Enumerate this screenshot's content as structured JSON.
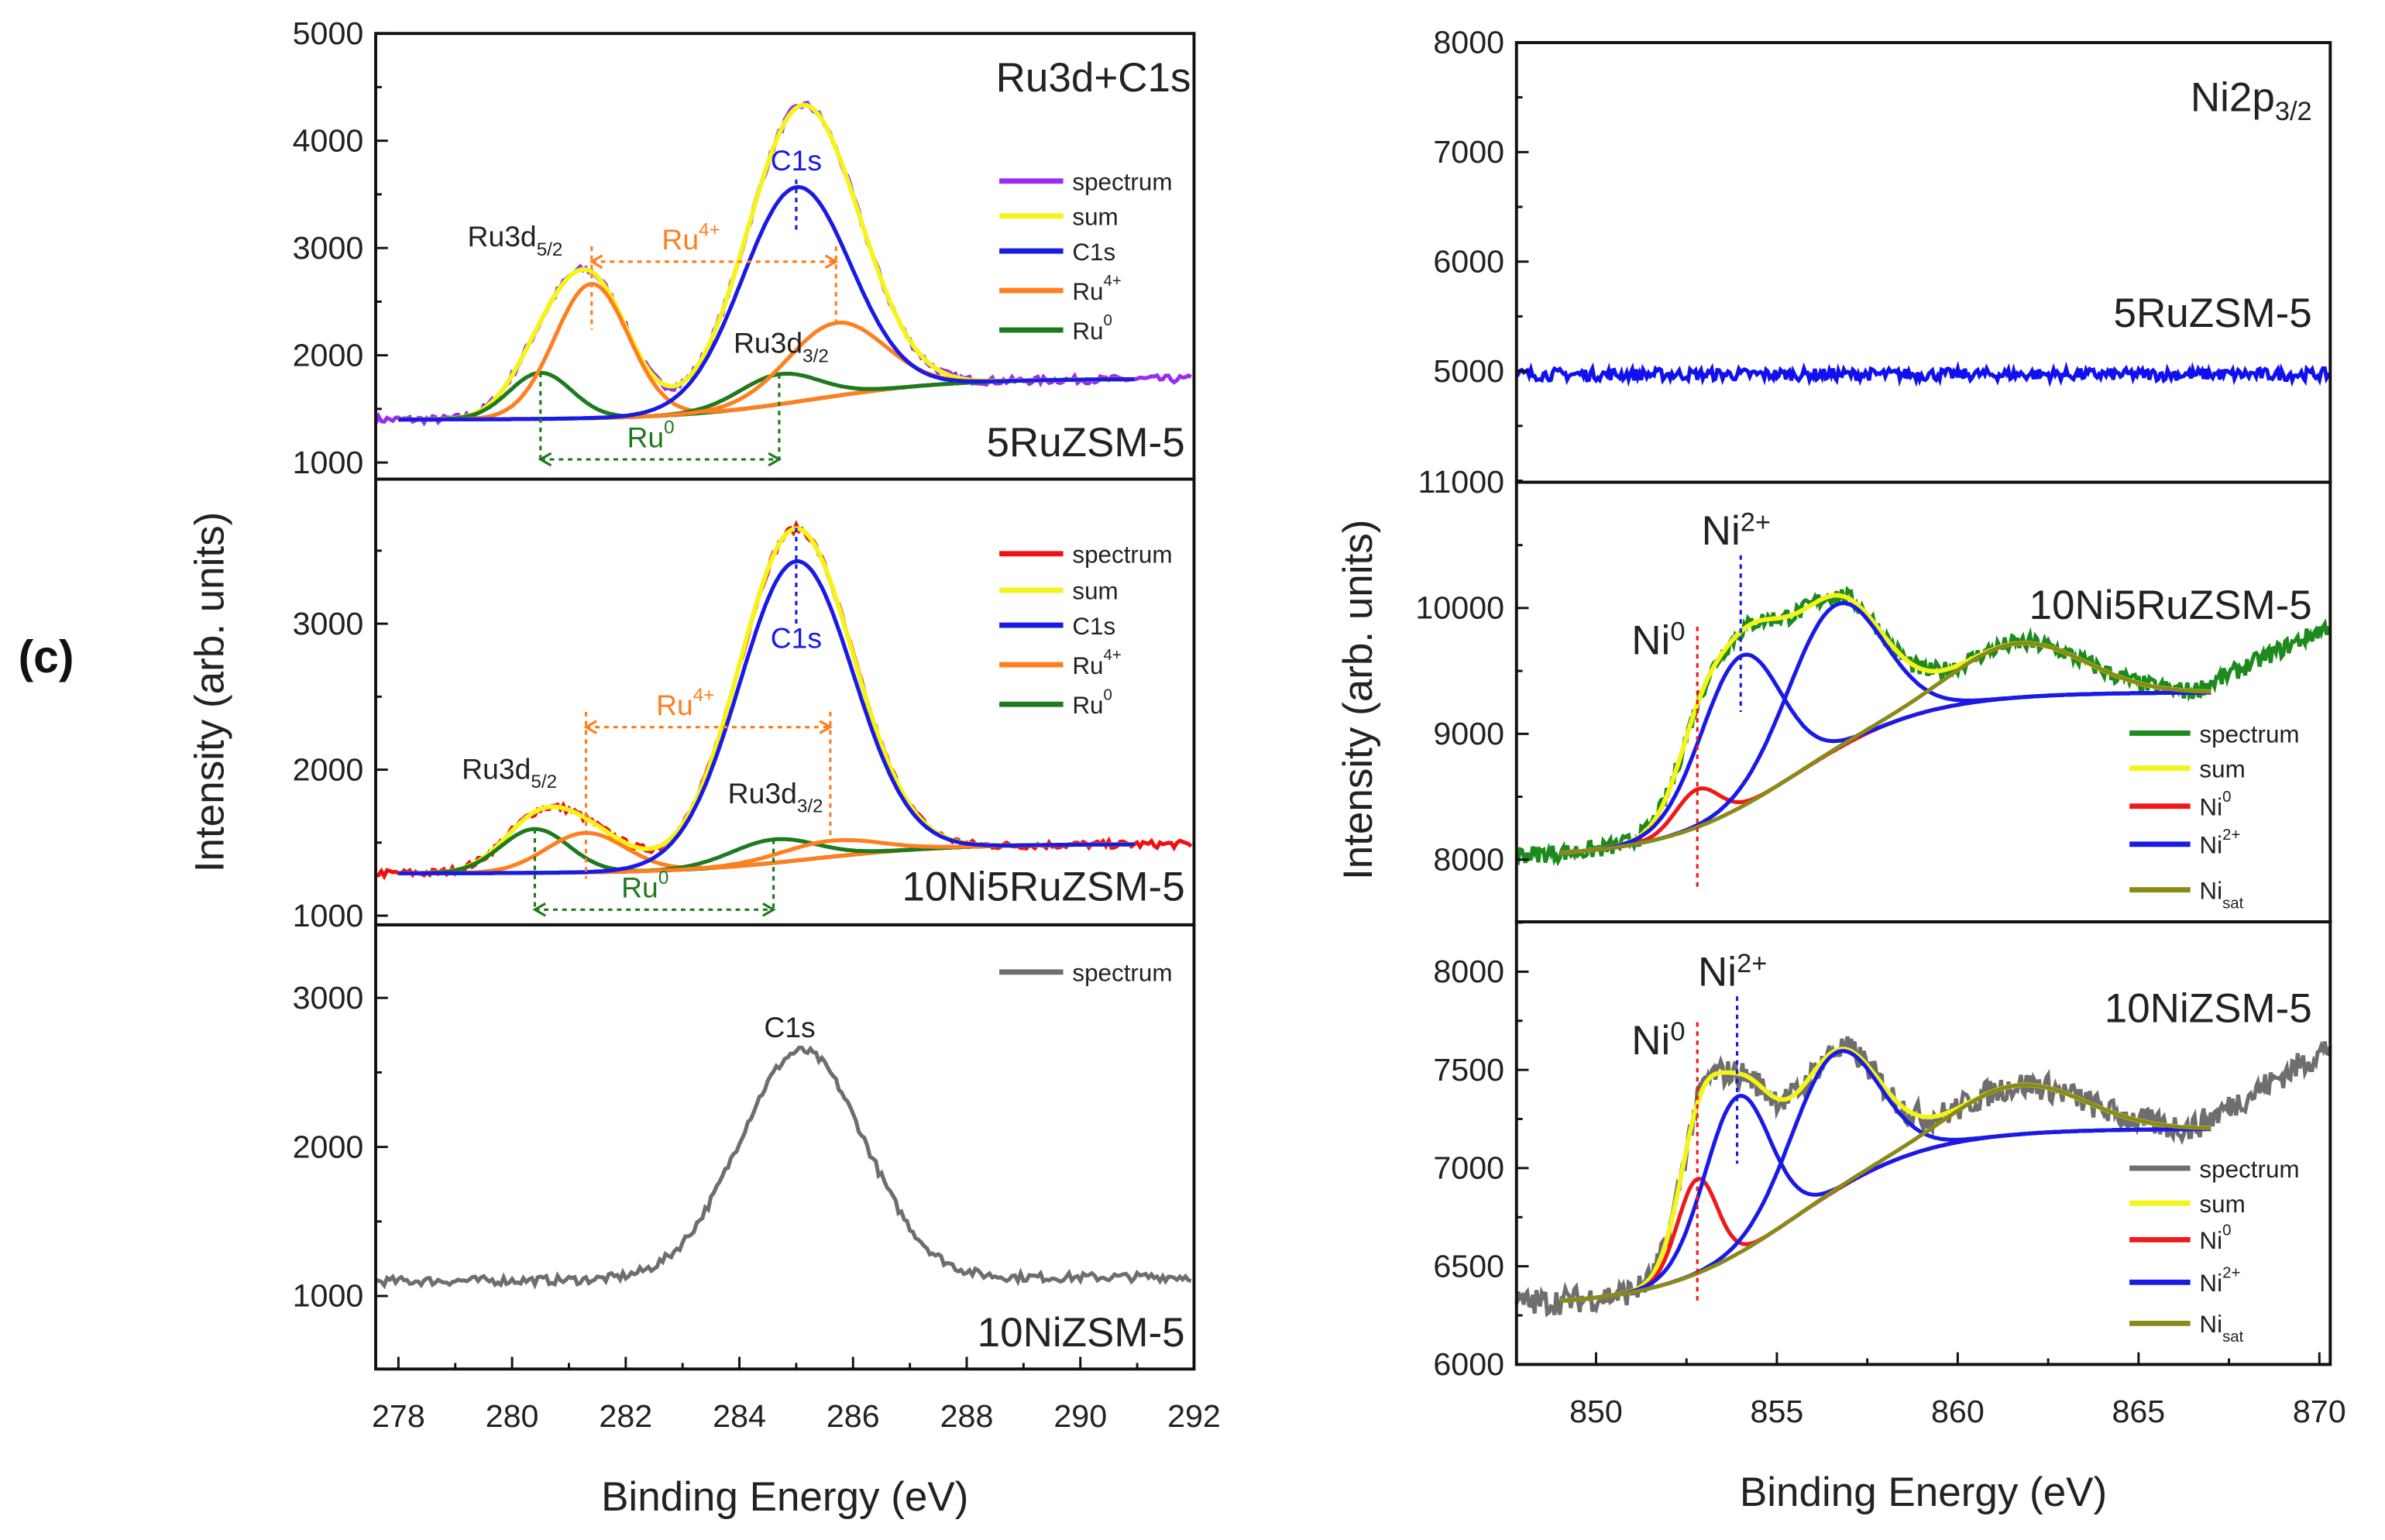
{
  "figure_label": "(c)",
  "colors": {
    "spectrum_purple": "#9a2cf0",
    "spectrum_red": "#f01010",
    "spectrum_grey": "#6e6e6e",
    "spectrum_green": "#1e8a1e",
    "spectrum_blue": "#1010f0",
    "sum": "#f4f418",
    "c1s": "#1a1ae6",
    "ru4": "#ff7f1e",
    "ru0": "#1e7a1e",
    "ni0": "#f01818",
    "ni2": "#1a1ae6",
    "nisat": "#8a8a1a"
  },
  "chart_data": [
    {
      "type": "line",
      "column": "left",
      "title": "Ru3d+C1s",
      "sample": "5RuZSM-5",
      "ylabel": "Intensity (arb. units)",
      "xlabel": "",
      "xlim": [
        277.6,
        292
      ],
      "ylim": [
        845,
        5000
      ],
      "yticks": [
        1000,
        2000,
        3000,
        4000,
        5000
      ],
      "background": {
        "low": 1400,
        "high": 1780,
        "center": 285.3,
        "width": 1.2
      },
      "components": [
        {
          "name": "Ru0",
          "center": 280.5,
          "amplitude": 430,
          "sigma": 0.55
        },
        {
          "name": "Ru4+",
          "center": 281.4,
          "amplitude": 1250,
          "sigma": 0.65
        },
        {
          "name": "Ru0",
          "center": 284.7,
          "amplitude": 280,
          "sigma": 0.7
        },
        {
          "name": "Ru4+",
          "center": 285.7,
          "amplitude": 680,
          "sigma": 0.85
        },
        {
          "name": "C1s",
          "center": 285.0,
          "amplitude": 2000,
          "sigma": 0.95
        }
      ],
      "legend": [
        {
          "text": "spectrum",
          "sup": "",
          "sub": "",
          "color": "spectrum_purple"
        },
        {
          "text": "sum",
          "sup": "",
          "sub": "",
          "color": "sum"
        },
        {
          "text": "C1s",
          "sup": "",
          "sub": "",
          "color": "c1s"
        },
        {
          "text": "Ru",
          "sup": "4+",
          "sub": "",
          "color": "ru4"
        },
        {
          "text": "Ru",
          "sup": "0",
          "sub": "",
          "color": "ru0"
        }
      ],
      "annotations": [
        {
          "text": "Ru3d",
          "sub": "5/2",
          "sup": ""
        },
        {
          "text": "Ru",
          "sup": "4+",
          "sub": ""
        },
        {
          "text": "C1s",
          "sup": "",
          "sub": ""
        },
        {
          "text": "Ru3d",
          "sub": "3/2",
          "sup": ""
        },
        {
          "text": "Ru",
          "sup": "0",
          "sub": ""
        }
      ]
    },
    {
      "type": "line",
      "column": "left",
      "sample": "10Ni5RuZSM-5",
      "xlim": [
        277.6,
        292
      ],
      "ylim": [
        937,
        3990
      ],
      "yticks": [
        1000,
        2000,
        3000
      ],
      "background": {
        "low": 1290,
        "high": 1490,
        "center": 285.3,
        "width": 1.2
      },
      "components": [
        {
          "name": "Ru0",
          "center": 280.4,
          "amplitude": 300,
          "sigma": 0.6
        },
        {
          "name": "Ru4+",
          "center": 281.3,
          "amplitude": 270,
          "sigma": 0.7
        },
        {
          "name": "Ru0",
          "center": 284.6,
          "amplitude": 160,
          "sigma": 0.75
        },
        {
          "name": "Ru4+",
          "center": 285.6,
          "amplitude": 110,
          "sigma": 0.85
        },
        {
          "name": "C1s",
          "center": 285.0,
          "amplitude": 2050,
          "sigma": 1.0
        }
      ],
      "legend": [
        {
          "text": "spectrum",
          "sup": "",
          "sub": "",
          "color": "spectrum_red"
        },
        {
          "text": "sum",
          "sup": "",
          "sub": "",
          "color": "sum"
        },
        {
          "text": "C1s",
          "sup": "",
          "sub": "",
          "color": "c1s"
        },
        {
          "text": "Ru",
          "sup": "4+",
          "sub": "",
          "color": "ru4"
        },
        {
          "text": "Ru",
          "sup": "0",
          "sub": "",
          "color": "ru0"
        }
      ],
      "annotations": [
        {
          "text": "Ru3d",
          "sub": "5/2",
          "sup": ""
        },
        {
          "text": "Ru",
          "sup": "4+",
          "sub": ""
        },
        {
          "text": "C1s",
          "sup": "",
          "sub": ""
        },
        {
          "text": "Ru3d",
          "sub": "3/2",
          "sup": ""
        },
        {
          "text": "Ru",
          "sup": "0",
          "sub": ""
        }
      ]
    },
    {
      "type": "line",
      "column": "left",
      "sample": "10NiZSM-5",
      "xlabel": "Binding Energy (eV)",
      "xlim": [
        277.6,
        292
      ],
      "ylim": [
        510,
        3490
      ],
      "yticks": [
        1000,
        2000,
        3000
      ],
      "xticks": [
        278,
        280,
        282,
        284,
        286,
        288,
        290,
        292
      ],
      "background": {
        "low": 1100,
        "high": 1150,
        "center": 285,
        "width": 2
      },
      "components": [
        {
          "name": "C1s",
          "center": 285.1,
          "amplitude": 1530,
          "sigma": 1.1
        }
      ],
      "legend": [
        {
          "text": "spectrum",
          "sup": "",
          "sub": "",
          "color": "spectrum_grey"
        }
      ],
      "annotations": [
        {
          "text": "C1s",
          "sup": "",
          "sub": ""
        }
      ]
    },
    {
      "type": "line",
      "column": "right",
      "title": "Ni2p",
      "title_sub": "3/2",
      "sample": "5RuZSM-5",
      "ylabel": "Intensity (arb. units)",
      "xlim": [
        847.8,
        870.3
      ],
      "ylim": [
        3986,
        8000
      ],
      "yticks": [
        5000,
        6000,
        7000,
        8000
      ],
      "background": {
        "low": 4970,
        "high": 4970,
        "center": 858,
        "width": 2
      },
      "components": [],
      "legend": [],
      "annotations": []
    },
    {
      "type": "line",
      "column": "right",
      "sample": "10Ni5RuZSM-5",
      "xlim": [
        847.8,
        870.3
      ],
      "ylim": [
        7506,
        11000
      ],
      "yticks": [
        8000,
        9000,
        10000,
        11000
      ],
      "background": {
        "low": 8020,
        "high": 9330,
        "center": 855.5,
        "width": 1.8
      },
      "components": [
        {
          "name": "Ni0",
          "center": 852.8,
          "amplitude": 300,
          "sigma": 0.6
        },
        {
          "name": "Ni2+",
          "center": 854.0,
          "amplitude": 1200,
          "sigma": 1.1
        },
        {
          "name": "Ni2+",
          "center": 856.6,
          "amplitude": 1150,
          "sigma": 1.3
        },
        {
          "name": "Nisat",
          "center": 861.7,
          "amplitude": 430,
          "sigma": 1.8
        }
      ],
      "legend": [
        {
          "text": "spectrum",
          "sup": "",
          "sub": "",
          "color": "spectrum_green"
        },
        {
          "text": "sum",
          "sup": "",
          "sub": "",
          "color": "sum"
        },
        {
          "text": "Ni",
          "sup": "0",
          "sub": "",
          "color": "ni0"
        },
        {
          "text": "Ni",
          "sup": "2+",
          "sub": "",
          "color": "ni2"
        },
        {
          "text": "Ni",
          "sup": "",
          "sub": "sat",
          "color": "nisat"
        }
      ],
      "annotations": [
        {
          "text": "Ni",
          "sup": "2+",
          "sub": ""
        },
        {
          "text": "Ni",
          "sup": "0",
          "sub": ""
        }
      ]
    },
    {
      "type": "line",
      "column": "right",
      "sample": "10NiZSM-5",
      "xlabel": "Binding Energy (eV)",
      "xlim": [
        847.8,
        870.3
      ],
      "ylim": [
        6000,
        8254
      ],
      "yticks": [
        6000,
        6500,
        7000,
        7500,
        8000
      ],
      "xticks": [
        850,
        855,
        860,
        865,
        870
      ],
      "background": {
        "low": 6300,
        "high": 7200,
        "center": 855.5,
        "width": 1.8
      },
      "components": [
        {
          "name": "Ni0",
          "center": 852.8,
          "amplitude": 480,
          "sigma": 0.55
        },
        {
          "name": "Ni2+",
          "center": 853.9,
          "amplitude": 800,
          "sigma": 0.9
        },
        {
          "name": "Ni2+",
          "center": 856.6,
          "amplitude": 700,
          "sigma": 1.2
        },
        {
          "name": "Nisat",
          "center": 861.7,
          "amplitude": 250,
          "sigma": 1.8
        }
      ],
      "legend": [
        {
          "text": "spectrum",
          "sup": "",
          "sub": "",
          "color": "spectrum_grey"
        },
        {
          "text": "sum",
          "sup": "",
          "sub": "",
          "color": "sum"
        },
        {
          "text": "Ni",
          "sup": "0",
          "sub": "",
          "color": "ni0"
        },
        {
          "text": "Ni",
          "sup": "2+",
          "sub": "",
          "color": "ni2"
        },
        {
          "text": "Ni",
          "sup": "",
          "sub": "sat",
          "color": "nisat"
        }
      ],
      "annotations": [
        {
          "text": "Ni",
          "sup": "2+",
          "sub": ""
        },
        {
          "text": "Ni",
          "sup": "0",
          "sub": ""
        }
      ]
    }
  ]
}
